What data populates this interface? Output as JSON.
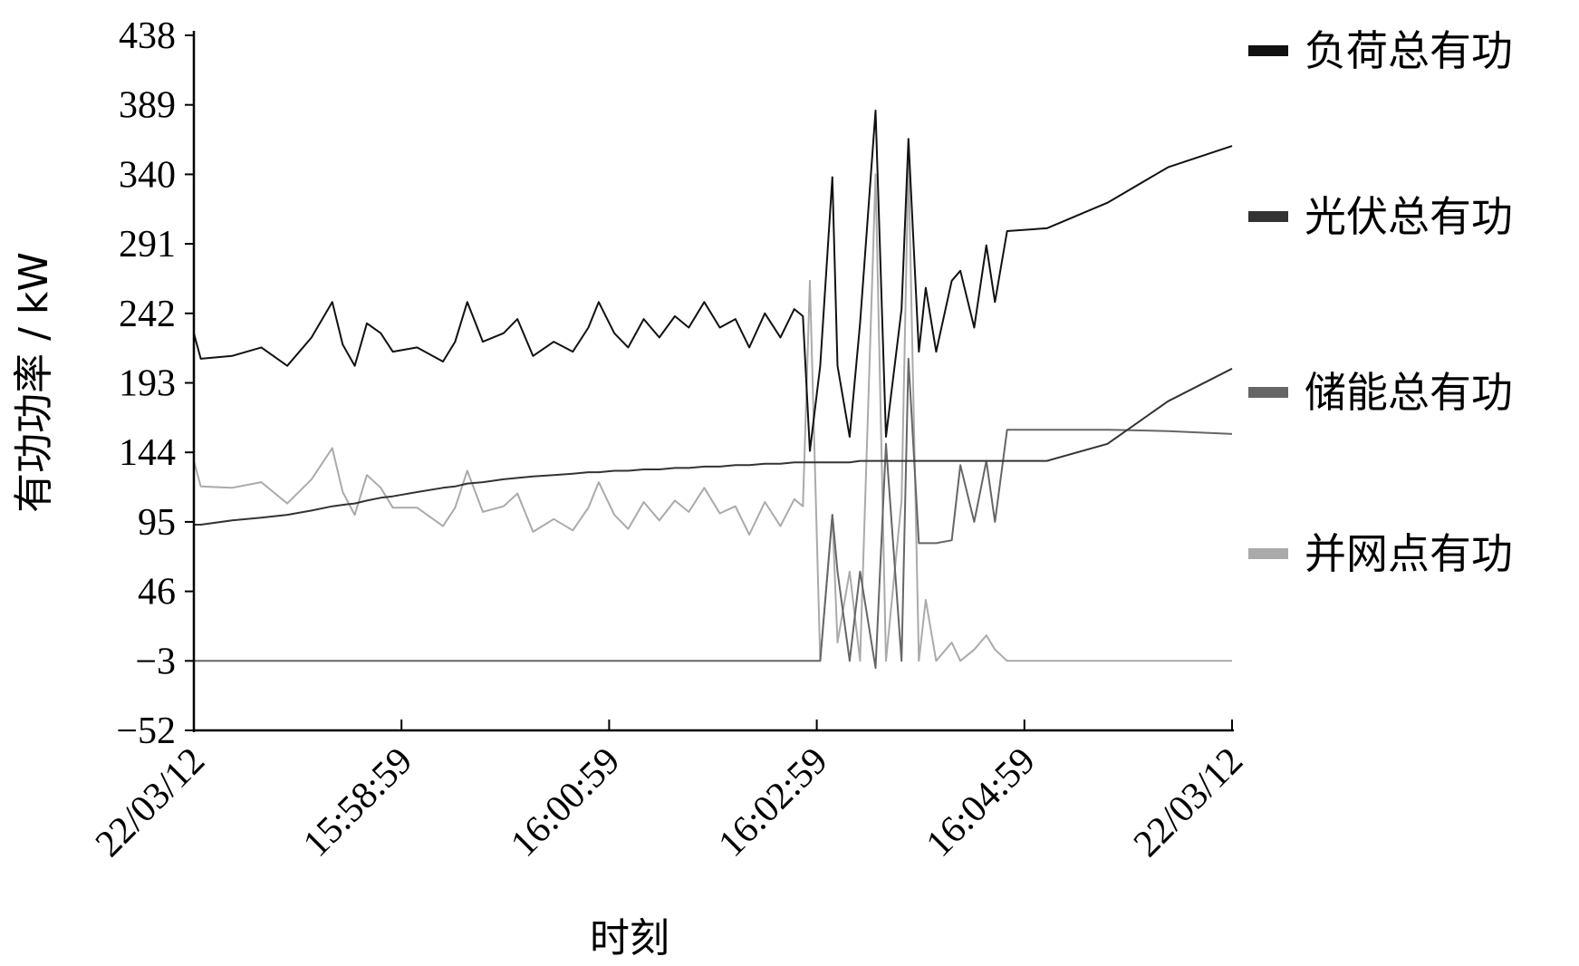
{
  "chart_data": {
    "type": "line",
    "title": "",
    "xlabel": "时刻",
    "ylabel": "有功功率 / kW",
    "ylim": [
      -52,
      438
    ],
    "yticks": [
      438,
      389,
      340,
      291,
      242,
      193,
      144,
      95,
      46,
      -3,
      -52
    ],
    "xlim": [
      "15:56:59",
      "16:06:59"
    ],
    "xticks": [
      {
        "time": "15:56:59",
        "label": "22/03/12"
      },
      {
        "time": "15:58:59",
        "label": "15:58:59"
      },
      {
        "time": "16:00:59",
        "label": "16:00:59"
      },
      {
        "time": "16:02:59",
        "label": "16:02:59"
      },
      {
        "time": "16:04:59",
        "label": "16:04:59"
      },
      {
        "time": "16:06:59",
        "label": "22/03/12"
      }
    ],
    "grid": false,
    "legend_position": "right",
    "x": [
      "15:56:59",
      "15:57:03",
      "15:57:21",
      "15:57:38",
      "15:57:53",
      "15:58:07",
      "15:58:19",
      "15:58:25",
      "15:58:32",
      "15:58:39",
      "15:58:47",
      "15:58:54",
      "15:59:08",
      "15:59:23",
      "15:59:30",
      "15:59:37",
      "15:59:46",
      "15:59:58",
      "16:00:06",
      "16:00:15",
      "16:00:27",
      "16:00:38",
      "16:00:47",
      "16:00:53",
      "16:01:02",
      "16:01:10",
      "16:01:19",
      "16:01:28",
      "16:01:37",
      "16:01:45",
      "16:01:54",
      "16:02:03",
      "16:02:12",
      "16:02:20",
      "16:02:29",
      "16:02:38",
      "16:02:46",
      "16:02:51",
      "16:02:55",
      "16:03:01",
      "16:03:08",
      "16:03:11",
      "16:03:18",
      "16:03:24",
      "16:03:33",
      "16:03:39",
      "16:03:48",
      "16:03:52",
      "16:03:58",
      "16:04:02",
      "16:04:08",
      "16:04:17",
      "16:04:22",
      "16:04:30",
      "16:04:37",
      "16:04:42",
      "16:04:49",
      "16:05:12",
      "16:05:47",
      "16:06:22",
      "16:06:59"
    ],
    "series": [
      {
        "name": "负荷总有功",
        "color": "#111111",
        "values": [
          228,
          210,
          212,
          218,
          205,
          225,
          250,
          220,
          205,
          235,
          228,
          215,
          218,
          208,
          222,
          250,
          222,
          228,
          238,
          212,
          222,
          215,
          232,
          250,
          228,
          218,
          238,
          225,
          240,
          232,
          250,
          232,
          238,
          218,
          242,
          225,
          245,
          240,
          145,
          205,
          338,
          205,
          155,
          235,
          385,
          155,
          245,
          365,
          215,
          260,
          215,
          265,
          272,
          232,
          290,
          250,
          300,
          302,
          320,
          345,
          360
        ]
      },
      {
        "name": "光伏总有功",
        "color": "#333333",
        "values": [
          93,
          93,
          96,
          98,
          100,
          103,
          106,
          107,
          108,
          110,
          112,
          113,
          116,
          119,
          120,
          122,
          123,
          125,
          126,
          127,
          128,
          129,
          130,
          130,
          131,
          131,
          132,
          132,
          133,
          133,
          134,
          134,
          135,
          135,
          136,
          136,
          137,
          137,
          137,
          137,
          137,
          137,
          137,
          138,
          138,
          138,
          138,
          138,
          138,
          138,
          138,
          138,
          138,
          138,
          138,
          138,
          138,
          138,
          150,
          180,
          203
        ]
      },
      {
        "name": "储能总有功",
        "color": "#666666",
        "values": [
          -3,
          -3,
          -3,
          -3,
          -3,
          -3,
          -3,
          -3,
          -3,
          -3,
          -3,
          -3,
          -3,
          -3,
          -3,
          -3,
          -3,
          -3,
          -3,
          -3,
          -3,
          -3,
          -3,
          -3,
          -3,
          -3,
          -3,
          -3,
          -3,
          -3,
          -3,
          -3,
          -3,
          -3,
          -3,
          -3,
          -3,
          -3,
          -3,
          -3,
          100,
          60,
          -3,
          60,
          -8,
          150,
          -3,
          210,
          80,
          80,
          80,
          82,
          135,
          95,
          138,
          95,
          160,
          160,
          160,
          159,
          157
        ]
      },
      {
        "name": "并网点有功",
        "color": "#aaaaaa",
        "values": [
          138,
          120,
          119,
          123,
          108,
          125,
          147,
          116,
          100,
          128,
          119,
          105,
          105,
          92,
          105,
          131,
          102,
          106,
          115,
          88,
          97,
          89,
          105,
          123,
          100,
          90,
          109,
          96,
          110,
          102,
          119,
          101,
          106,
          86,
          109,
          92,
          111,
          106,
          265,
          -3,
          100,
          10,
          60,
          -3,
          340,
          -3,
          110,
          350,
          -3,
          40,
          -3,
          10,
          -3,
          5,
          15,
          5,
          -3,
          -3,
          -3,
          -3,
          -3
        ]
      }
    ]
  }
}
